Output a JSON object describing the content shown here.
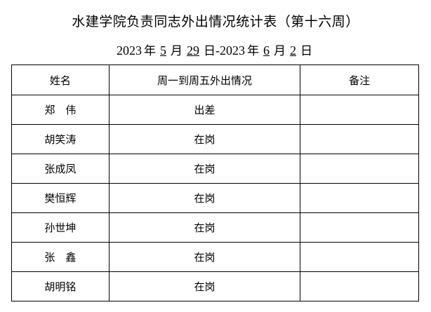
{
  "title": "水建学院负责同志外出情况统计表（第十六周）",
  "date": {
    "start_year": "2023",
    "start_month": "5",
    "start_day": "29",
    "end_year": "2023",
    "end_month": "6",
    "end_day": "2",
    "year_char": "年",
    "month_char": "月",
    "day_char": "日",
    "separator": "-"
  },
  "table": {
    "headers": [
      "姓名",
      "周一到周五外出情况",
      "备注"
    ],
    "rows": [
      {
        "name": "郑　伟",
        "status": "出差",
        "note": ""
      },
      {
        "name": "胡笑涛",
        "status": "在岗",
        "note": ""
      },
      {
        "name": "张成凤",
        "status": "在岗",
        "note": ""
      },
      {
        "name": "樊恒辉",
        "status": "在岗",
        "note": ""
      },
      {
        "name": "孙世坤",
        "status": "在岗",
        "note": ""
      },
      {
        "name": "张　鑫",
        "status": "在岗",
        "note": ""
      },
      {
        "name": "胡明铭",
        "status": "在岗",
        "note": ""
      }
    ]
  }
}
